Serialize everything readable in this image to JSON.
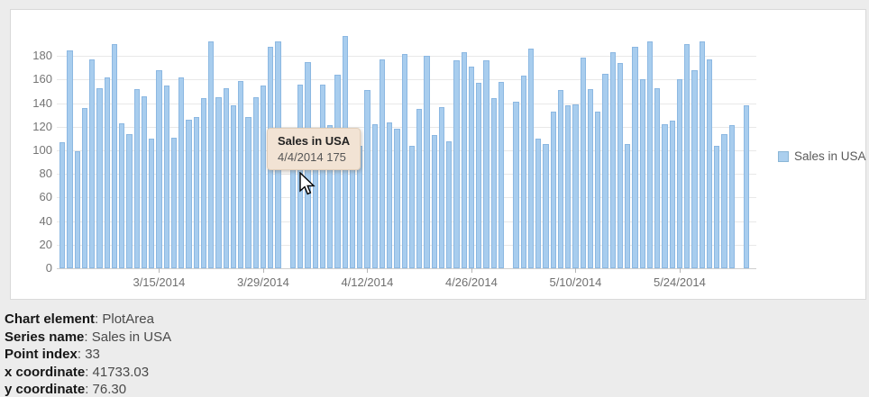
{
  "page": {
    "background": "#ececec"
  },
  "chart_data": {
    "type": "bar",
    "title": "",
    "xlabel": "",
    "ylabel": "",
    "series_name": "Sales in USA",
    "categories": [
      "3/2/2014",
      "3/3/2014",
      "3/4/2014",
      "3/5/2014",
      "3/6/2014",
      "3/7/2014",
      "3/8/2014",
      "3/9/2014",
      "3/10/2014",
      "3/11/2014",
      "3/12/2014",
      "3/13/2014",
      "3/14/2014",
      "3/15/2014",
      "3/16/2014",
      "3/17/2014",
      "3/18/2014",
      "3/19/2014",
      "3/20/2014",
      "3/21/2014",
      "3/22/2014",
      "3/23/2014",
      "3/24/2014",
      "3/25/2014",
      "3/26/2014",
      "3/27/2014",
      "3/28/2014",
      "3/29/2014",
      "3/30/2014",
      "3/31/2014",
      "4/1/2014",
      "4/2/2014",
      "4/3/2014",
      "4/4/2014",
      "4/5/2014",
      "4/6/2014",
      "4/7/2014",
      "4/8/2014",
      "4/9/2014",
      "4/10/2014",
      "4/11/2014",
      "4/12/2014",
      "4/13/2014",
      "4/14/2014",
      "4/15/2014",
      "4/16/2014",
      "4/17/2014",
      "4/18/2014",
      "4/19/2014",
      "4/20/2014",
      "4/21/2014",
      "4/22/2014",
      "4/23/2014",
      "4/24/2014",
      "4/25/2014",
      "4/26/2014",
      "4/27/2014",
      "4/28/2014",
      "4/29/2014",
      "4/30/2014",
      "5/1/2014",
      "5/2/2014",
      "5/3/2014",
      "5/4/2014",
      "5/5/2014",
      "5/6/2014",
      "5/7/2014",
      "5/8/2014",
      "5/9/2014",
      "5/10/2014",
      "5/11/2014",
      "5/12/2014",
      "5/13/2014",
      "5/14/2014",
      "5/15/2014",
      "5/16/2014",
      "5/17/2014",
      "5/18/2014",
      "5/19/2014",
      "5/20/2014",
      "5/21/2014",
      "5/22/2014",
      "5/23/2014",
      "5/24/2014",
      "5/25/2014",
      "5/26/2014",
      "5/27/2014",
      "5/28/2014",
      "5/29/2014",
      "5/30/2014",
      "5/31/2014",
      "6/1/2014",
      "6/2/2014"
    ],
    "values": [
      107,
      185,
      99,
      136,
      177,
      153,
      162,
      190,
      123,
      114,
      152,
      146,
      110,
      168,
      155,
      111,
      162,
      126,
      128,
      144,
      192,
      145,
      153,
      138,
      159,
      128,
      145,
      155,
      188,
      192,
      0,
      112,
      156,
      175,
      110,
      156,
      121,
      164,
      197,
      105,
      104,
      151,
      122,
      177,
      124,
      118,
      182,
      104,
      135,
      180,
      113,
      137,
      108,
      176,
      183,
      171,
      157,
      176,
      144,
      158,
      0,
      141,
      163,
      186,
      110,
      105,
      133,
      151,
      138,
      139,
      179,
      152,
      133,
      165,
      183,
      174,
      105,
      188,
      160,
      192,
      153,
      122,
      125,
      160,
      190,
      168,
      192,
      177,
      104,
      114,
      121,
      0,
      138
    ],
    "ylim": [
      0,
      200
    ],
    "yticks": [
      0,
      20,
      40,
      60,
      80,
      100,
      120,
      140,
      160,
      180
    ],
    "xticks": [
      {
        "index": 13,
        "label": "3/15/2014"
      },
      {
        "index": 27,
        "label": "3/29/2014"
      },
      {
        "index": 41,
        "label": "4/12/2014"
      },
      {
        "index": 55,
        "label": "4/26/2014"
      },
      {
        "index": 69,
        "label": "5/10/2014"
      },
      {
        "index": 83,
        "label": "5/24/2014"
      }
    ],
    "grid": "horizontal",
    "legend_position": "right",
    "bar_fill": "#a8cdee",
    "bar_border": "#8cb8e2"
  },
  "legend": {
    "label": "Sales in USA"
  },
  "tooltip": {
    "title": "Sales in USA",
    "line": "4/4/2014 175",
    "background": "#f2e3d4"
  },
  "status": {
    "rows": [
      {
        "label": "Chart element",
        "value": "PlotArea"
      },
      {
        "label": "Series name",
        "value": "Sales in USA"
      },
      {
        "label": "Point index",
        "value": "33"
      },
      {
        "label": "x coordinate",
        "value": "41733.03"
      },
      {
        "label": "y coordinate",
        "value": "76.30"
      }
    ]
  }
}
